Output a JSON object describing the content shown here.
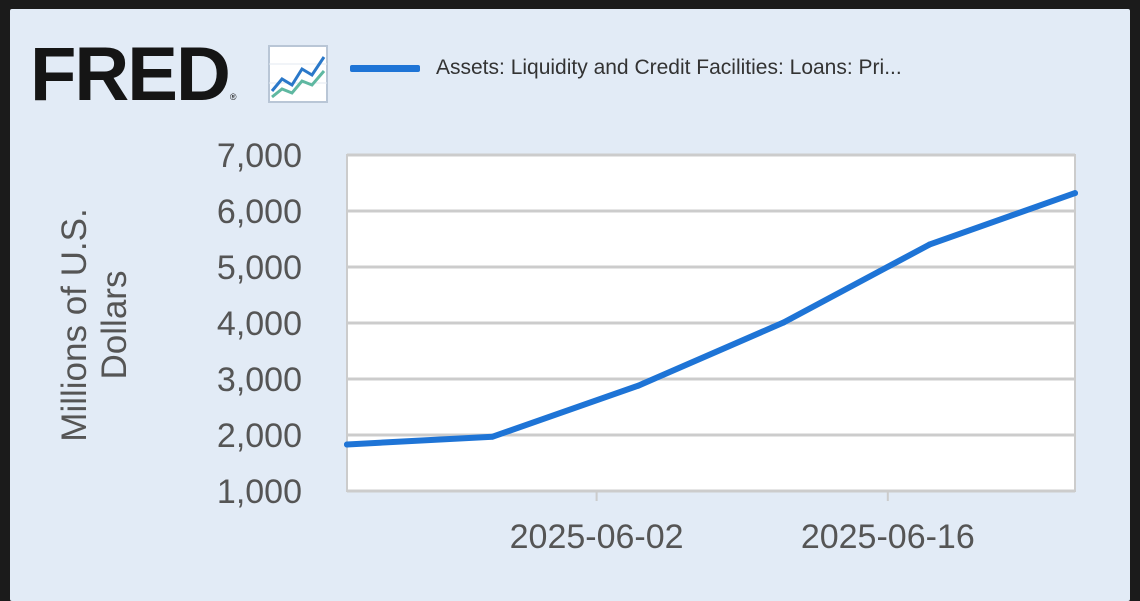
{
  "logo": {
    "text": "FRED",
    "reg_mark": "®",
    "icon": "line-chart-icon"
  },
  "colors": {
    "background": "#e2ebf6",
    "plot_background": "#ffffff",
    "grid": "#cccccc",
    "series": "#1e74d6",
    "text": "#555555"
  },
  "chart_data": {
    "type": "line",
    "legend": "Assets: Liquidity and Credit Facilities: Loans: Pri...",
    "legend_position": "top",
    "ylabel": "Millions of U.S.\nDollars",
    "xlabel": "",
    "ylim": [
      1000,
      7000
    ],
    "yticks": [
      "1,000",
      "2,000",
      "3,000",
      "4,000",
      "5,000",
      "6,000",
      "7,000"
    ],
    "ytick_values": [
      1000,
      2000,
      3000,
      4000,
      5000,
      6000,
      7000
    ],
    "xlim": [
      "2025-05-21",
      "2025-06-25"
    ],
    "xticks": [
      "2025-06-02",
      "2025-06-16"
    ],
    "grid": true,
    "series": [
      {
        "name": "Assets: Liquidity and Credit Facilities: Loans: Pri...",
        "x": [
          "2025-05-21",
          "2025-05-28",
          "2025-06-04",
          "2025-06-11",
          "2025-06-18",
          "2025-06-25"
        ],
        "y": [
          1830,
          1970,
          2880,
          4010,
          5400,
          6320
        ]
      }
    ]
  }
}
